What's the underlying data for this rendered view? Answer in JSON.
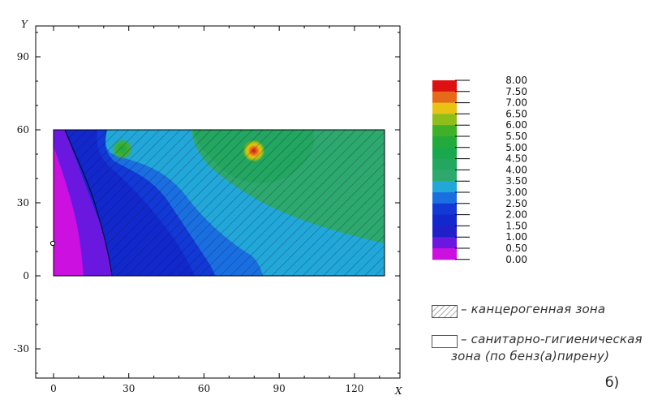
{
  "chart_data": {
    "type": "heatmap",
    "title": "",
    "xlabel": "X",
    "ylabel": "Y",
    "xlim": [
      -3,
      137
    ],
    "ylim": [
      -42,
      103
    ],
    "x_ticks": [
      0,
      30,
      60,
      90,
      120
    ],
    "y_ticks": [
      -30,
      0,
      30,
      60,
      90
    ],
    "domain": {
      "x": [
        0,
        132
      ],
      "y": [
        0,
        60
      ]
    },
    "colorbar": {
      "levels": [
        "8.00",
        "7.50",
        "7.00",
        "6.50",
        "6.00",
        "5.50",
        "5.00",
        "4.50",
        "4.00",
        "3.50",
        "3.00",
        "2.50",
        "2.00",
        "1.50",
        "1.00",
        "0.50",
        "0.00"
      ],
      "colors": [
        "#dd1111",
        "#e66a1a",
        "#e8c214",
        "#8fbe1a",
        "#3fb028",
        "#22aa3a",
        "#1aa84e",
        "#22a660",
        "#2ea96e",
        "#22a8d8",
        "#1a6fe0",
        "#1238d6",
        "#1228cc",
        "#2020c8",
        "#6a18e0",
        "#cc10e0"
      ]
    },
    "hotspots": [
      {
        "x": 80,
        "y": 51,
        "value": 8.0
      },
      {
        "x": 28,
        "y": 52,
        "value": 4.0
      }
    ],
    "point_marker": {
      "x": 0,
      "y": 13
    }
  },
  "legend": {
    "hatched_label": "– канцерогенная зона",
    "white_label_line1": "– санитарно-гигиеническая",
    "white_label_line2": "зона (по бенз(а)пирену)"
  },
  "caption": "б)",
  "colors": {
    "hatch": "#0a0a3a",
    "frame": "#000000"
  }
}
